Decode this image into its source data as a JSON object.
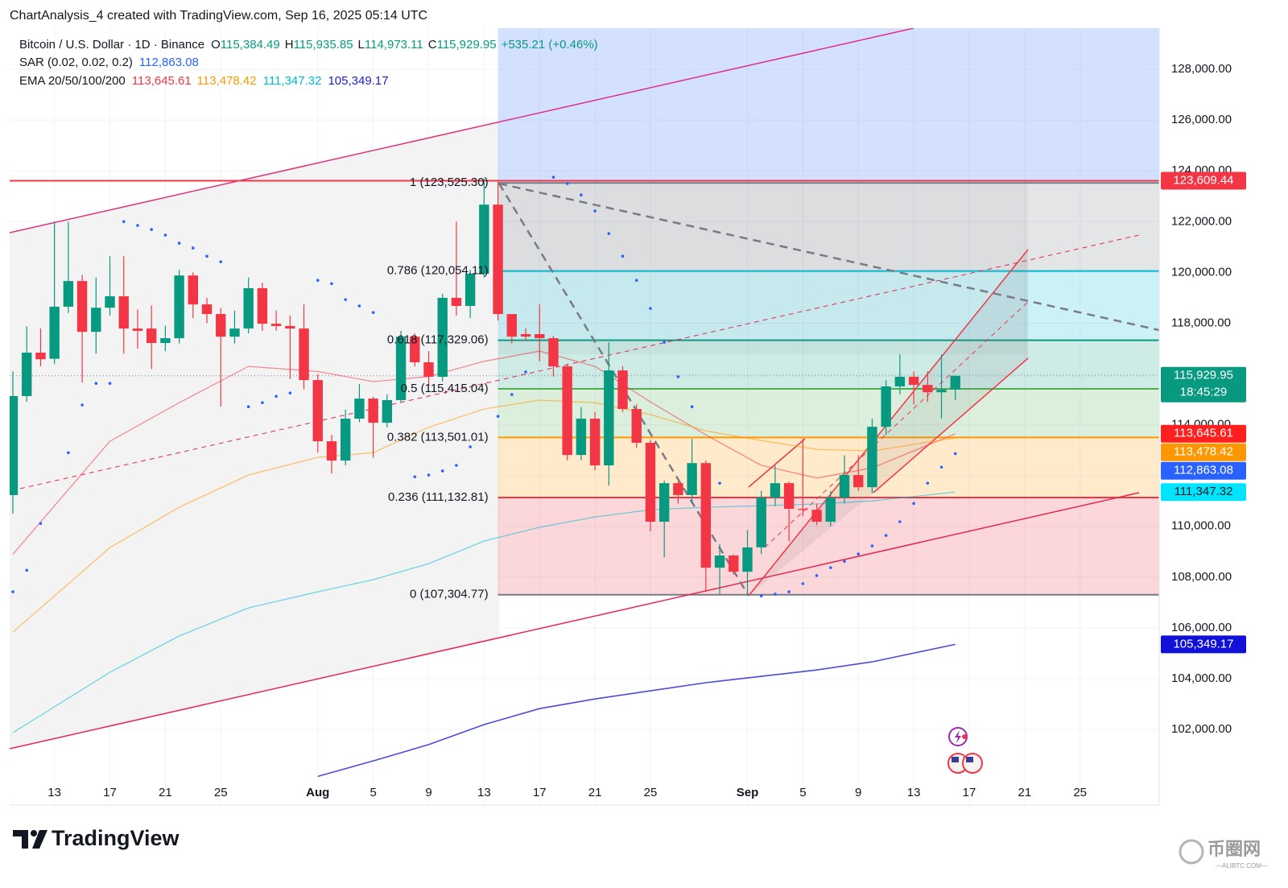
{
  "header": "ChartAnalysis_4 created with TradingView.com, Sep 16, 2025 05:14 UTC",
  "chart_data": {
    "type": "candlestick",
    "legend": {
      "symbol": "Bitcoin / U.S. Dollar · 1D · Binance",
      "items": [
        {
          "key": "O",
          "value": "115,384.49"
        },
        {
          "key": "H",
          "value": "115,935.85"
        },
        {
          "key": "L",
          "value": "114,973.11"
        },
        {
          "key": "C",
          "value": "115,929.95"
        }
      ],
      "change": "+535.21 (+0.46%)"
    },
    "up_color": "#089981",
    "down_color": "#f23645",
    "xlim": [
      "2025-07-10",
      "2025-10-01"
    ],
    "ylim": [
      99020,
      129620
    ],
    "grid": true,
    "xticks": [
      {
        "value": "2025-07-13",
        "label": "13"
      },
      {
        "value": "2025-07-17",
        "label": "17"
      },
      {
        "value": "2025-07-21",
        "label": "21"
      },
      {
        "value": "2025-07-25",
        "label": "25"
      },
      {
        "value": "2025-08-01",
        "label": "Aug"
      },
      {
        "value": "2025-08-05",
        "label": "5"
      },
      {
        "value": "2025-08-09",
        "label": "9"
      },
      {
        "value": "2025-08-13",
        "label": "13"
      },
      {
        "value": "2025-08-17",
        "label": "17"
      },
      {
        "value": "2025-08-21",
        "label": "21"
      },
      {
        "value": "2025-08-25",
        "label": "25"
      },
      {
        "value": "2025-09-01",
        "label": "Sep"
      },
      {
        "value": "2025-09-05",
        "label": "5"
      },
      {
        "value": "2025-09-09",
        "label": "9"
      },
      {
        "value": "2025-09-13",
        "label": "13"
      },
      {
        "value": "2025-09-17",
        "label": "17"
      },
      {
        "value": "2025-09-21",
        "label": "21"
      },
      {
        "value": "2025-09-25",
        "label": "25"
      }
    ],
    "yticks": [
      {
        "value": 102000,
        "label": "102,000.00"
      },
      {
        "value": 104000,
        "label": "104,000.00"
      },
      {
        "value": 106000,
        "label": "106,000.00"
      },
      {
        "value": 108000,
        "label": "108,000.00"
      },
      {
        "value": 110000,
        "label": "110,000.00"
      },
      {
        "value": 112000,
        "label": "112,000.00"
      },
      {
        "value": 114000,
        "label": "114,000.00"
      },
      {
        "value": 116000,
        "label": "116,000.00"
      },
      {
        "value": 118000,
        "label": "118,000.00"
      },
      {
        "value": 120000,
        "label": "120,000.00"
      },
      {
        "value": 122000,
        "label": "122,000.00"
      },
      {
        "value": 124000,
        "label": "124,000.00"
      },
      {
        "value": 126000,
        "label": "126,000.00"
      },
      {
        "value": 128000,
        "label": "128,000.00"
      }
    ],
    "x": [
      "2025-07-10",
      "2025-07-11",
      "2025-07-12",
      "2025-07-13",
      "2025-07-14",
      "2025-07-15",
      "2025-07-16",
      "2025-07-17",
      "2025-07-18",
      "2025-07-19",
      "2025-07-20",
      "2025-07-21",
      "2025-07-22",
      "2025-07-23",
      "2025-07-24",
      "2025-07-25",
      "2025-07-26",
      "2025-07-27",
      "2025-07-28",
      "2025-07-29",
      "2025-07-30",
      "2025-07-31",
      "2025-08-01",
      "2025-08-02",
      "2025-08-03",
      "2025-08-04",
      "2025-08-05",
      "2025-08-06",
      "2025-08-07",
      "2025-08-08",
      "2025-08-09",
      "2025-08-10",
      "2025-08-11",
      "2025-08-12",
      "2025-08-13",
      "2025-08-14",
      "2025-08-15",
      "2025-08-16",
      "2025-08-17",
      "2025-08-18",
      "2025-08-19",
      "2025-08-20",
      "2025-08-21",
      "2025-08-22",
      "2025-08-23",
      "2025-08-24",
      "2025-08-25",
      "2025-08-26",
      "2025-08-27",
      "2025-08-28",
      "2025-08-29",
      "2025-08-30",
      "2025-08-31",
      "2025-09-01",
      "2025-09-02",
      "2025-09-03",
      "2025-09-04",
      "2025-09-05",
      "2025-09-06",
      "2025-09-07",
      "2025-09-08",
      "2025-09-09",
      "2025-09-10",
      "2025-09-11",
      "2025-09-12",
      "2025-09-13",
      "2025-09-14",
      "2025-09-15",
      "2025-09-16"
    ],
    "open": [
      111230,
      115130,
      116840,
      116600,
      118650,
      119660,
      117660,
      118610,
      119060,
      117790,
      117790,
      117220,
      117410,
      119880,
      118740,
      118360,
      117470,
      117790,
      119380,
      117980,
      117890,
      117790,
      115760,
      113350,
      112590,
      114240,
      115030,
      114080,
      114970,
      117470,
      116460,
      115890,
      119000,
      118680,
      119950,
      122670,
      118360,
      117570,
      117570,
      117410,
      116300,
      112810,
      114240,
      112400,
      116140,
      114620,
      113290,
      110180,
      111700,
      111230,
      112490,
      108370,
      108850,
      108210,
      109170,
      111130,
      111700,
      110690,
      110650,
      110180,
      111130,
      112020,
      111540,
      113920,
      115510,
      115890,
      115570,
      115280,
      115384.49
    ],
    "high": [
      116100,
      117880,
      117800,
      122000,
      122000,
      119900,
      119800,
      120640,
      120640,
      118540,
      118700,
      117900,
      120100,
      120000,
      119000,
      118600,
      118500,
      119800,
      119600,
      118500,
      118300,
      118740,
      116000,
      113600,
      114600,
      115600,
      115100,
      115200,
      117700,
      117600,
      116900,
      119160,
      122000,
      120100,
      123690,
      123560,
      118200,
      117800,
      118740,
      117500,
      116400,
      114700,
      114500,
      117250,
      116300,
      114800,
      113400,
      111800,
      111760,
      113440,
      112590,
      109300,
      108900,
      109850,
      111400,
      112400,
      111760,
      113440,
      110900,
      111400,
      112800,
      112800,
      114240,
      115760,
      116770,
      116100,
      116100,
      116770,
      115935.85
    ],
    "low": [
      110500,
      114900,
      116300,
      116400,
      118400,
      115660,
      116800,
      118300,
      116800,
      117000,
      116200,
      116900,
      117200,
      118200,
      118000,
      114710,
      117200,
      117600,
      117700,
      117700,
      115800,
      115400,
      112900,
      112080,
      112400,
      114100,
      112700,
      113900,
      114900,
      116300,
      115500,
      115700,
      118300,
      118200,
      119800,
      118100,
      117200,
      117300,
      116500,
      115900,
      112600,
      112600,
      112200,
      111600,
      114500,
      113100,
      109800,
      108780,
      110900,
      110900,
      107420,
      107330,
      108100,
      107300,
      108900,
      110800,
      109400,
      110400,
      110050,
      110000,
      110900,
      111400,
      111300,
      113600,
      115200,
      114800,
      114900,
      114250,
      114973.11
    ],
    "close": [
      115130,
      116840,
      116580,
      118650,
      119660,
      117660,
      118610,
      119060,
      117790,
      117700,
      117220,
      117410,
      119880,
      118740,
      118360,
      117470,
      117790,
      119380,
      117980,
      117890,
      117790,
      115760,
      113350,
      112590,
      114240,
      115030,
      114080,
      114970,
      117470,
      116460,
      115890,
      119000,
      118680,
      119950,
      122670,
      118360,
      117470,
      117470,
      117410,
      116300,
      112810,
      114240,
      112400,
      116140,
      114620,
      113290,
      110180,
      111700,
      111230,
      112490,
      108370,
      108850,
      108210,
      109170,
      111130,
      111700,
      110690,
      110650,
      110180,
      111130,
      112020,
      111540,
      113920,
      115510,
      115890,
      115570,
      115280,
      115380,
      115929.95
    ],
    "sar": {
      "name": "SAR (0.02, 0.02, 0.2)",
      "last_label": "112,863.08",
      "color": "#2962ff",
      "x": [
        "2025-07-10",
        "2025-07-11",
        "2025-07-12",
        "2025-07-14",
        "2025-07-15",
        "2025-07-16",
        "2025-07-17",
        "2025-07-18",
        "2025-07-19",
        "2025-07-20",
        "2025-07-21",
        "2025-07-22",
        "2025-07-23",
        "2025-07-24",
        "2025-07-25",
        "2025-07-27",
        "2025-07-28",
        "2025-07-29",
        "2025-07-30",
        "2025-08-01",
        "2025-08-02",
        "2025-08-03",
        "2025-08-04",
        "2025-08-05",
        "2025-08-08",
        "2025-08-09",
        "2025-08-10",
        "2025-08-11",
        "2025-08-12",
        "2025-08-14",
        "2025-08-15",
        "2025-08-16",
        "2025-08-18",
        "2025-08-19",
        "2025-08-20",
        "2025-08-21",
        "2025-08-22",
        "2025-08-23",
        "2025-08-24",
        "2025-08-25",
        "2025-08-26",
        "2025-08-27",
        "2025-08-28",
        "2025-08-30",
        "2025-09-02",
        "2025-09-03",
        "2025-09-04",
        "2025-09-05",
        "2025-09-06",
        "2025-09-07",
        "2025-09-08",
        "2025-09-09",
        "2025-09-10",
        "2025-09-11",
        "2025-09-12",
        "2025-09-13",
        "2025-09-14",
        "2025-09-15",
        "2025-09-16"
      ],
      "values": [
        107420,
        108270,
        110110,
        112900,
        114780,
        115630,
        115630,
        122000,
        121850,
        121690,
        121470,
        121150,
        120960,
        120640,
        120420,
        114710,
        114870,
        115120,
        115250,
        119690,
        119560,
        118930,
        118680,
        118420,
        111950,
        112020,
        112180,
        112400,
        113130,
        114330,
        115190,
        116080,
        123750,
        123500,
        123050,
        122420,
        121530,
        120640,
        119690,
        118580,
        117250,
        115890,
        114710,
        111700,
        107260,
        107330,
        107420,
        107740,
        108060,
        108370,
        108620,
        108910,
        109230,
        109640,
        110180,
        110900,
        111700,
        112330,
        112863.08
      ]
    },
    "ema": {
      "name": "EMA 20/50/100/200",
      "x": [
        "2025-07-10",
        "2025-07-17",
        "2025-07-22",
        "2025-07-27",
        "2025-08-01",
        "2025-08-05",
        "2025-08-09",
        "2025-08-13",
        "2025-08-17",
        "2025-08-21",
        "2025-08-25",
        "2025-08-29",
        "2025-09-02",
        "2025-09-06",
        "2025-09-10",
        "2025-09-16"
      ],
      "series": [
        {
          "last_label": "113,645.61",
          "color": "#f23645",
          "values": [
            108900,
            113350,
            114870,
            116300,
            116100,
            115700,
            115900,
            116500,
            116900,
            116300,
            114900,
            113600,
            112400,
            111900,
            112300,
            113645.61
          ]
        },
        {
          "last_label": "113,478.42",
          "color": "#ff9800",
          "values": [
            105830,
            109160,
            110750,
            112020,
            112720,
            112900,
            113900,
            114620,
            114970,
            114870,
            114400,
            113760,
            113380,
            113030,
            112970,
            113478.42
          ]
        },
        {
          "last_label": "111,347.32",
          "color": "#00bcd4",
          "values": [
            101870,
            104250,
            105680,
            106790,
            107420,
            107900,
            108530,
            109420,
            109960,
            110370,
            110650,
            110750,
            110810,
            110880,
            111000,
            111347.32
          ]
        },
        {
          "last_label": "105,349.17",
          "color": "#1e1ed2",
          "values": [
            null,
            null,
            null,
            null,
            100150,
            100760,
            101400,
            102190,
            102820,
            103200,
            103520,
            103840,
            104090,
            104340,
            104660,
            105349.17
          ]
        }
      ]
    },
    "fib": {
      "start": "2025-08-14",
      "levels": [
        {
          "label": "1 (123,525.30)",
          "value": 123525.3,
          "color": "#787b86"
        },
        {
          "label": "0.786 (120,054.11)",
          "value": 120054.11,
          "color": "#00bcd4"
        },
        {
          "label": "0.618 (117,329.06)",
          "value": 117329.06,
          "color": "#089981"
        },
        {
          "label": "0.5 (115,415.04)",
          "value": 115415.04,
          "color": "#4caf50"
        },
        {
          "label": "0.382 (113,501.01)",
          "value": 113501.01,
          "color": "#ff9800"
        },
        {
          "label": "0.236 (111,132.81)",
          "value": 111132.81,
          "color": "#f23645"
        },
        {
          "label": "0 (107,304.77)",
          "value": 107304.77,
          "color": "#787b86"
        }
      ]
    },
    "price_tags": [
      {
        "label": "123,609.44",
        "value": 123609.44,
        "color": "#f23645",
        "line": "solid"
      },
      {
        "label": "115,929.95",
        "value": 115929.95,
        "color": "#089981",
        "line": "dotted",
        "countdown": "18:45:29"
      },
      {
        "label": "113,645.61",
        "value": 113645.61,
        "color": "#ff1f1f"
      },
      {
        "label": "113,478.42",
        "value": 113478.42,
        "color": "#ff9800"
      },
      {
        "label": "112,863.08",
        "value": 112863.08,
        "color": "#2962ff"
      },
      {
        "label": "111,347.32",
        "value": 111347.32,
        "color": "#00e5ff",
        "text_color": "#131722"
      },
      {
        "label": "105,349.17",
        "value": 105349.17,
        "color": "#1010d8"
      }
    ]
  },
  "logo": "TradingView",
  "watermark": {
    "name": "币圈网",
    "site": "—ALIBTC.COM—"
  }
}
